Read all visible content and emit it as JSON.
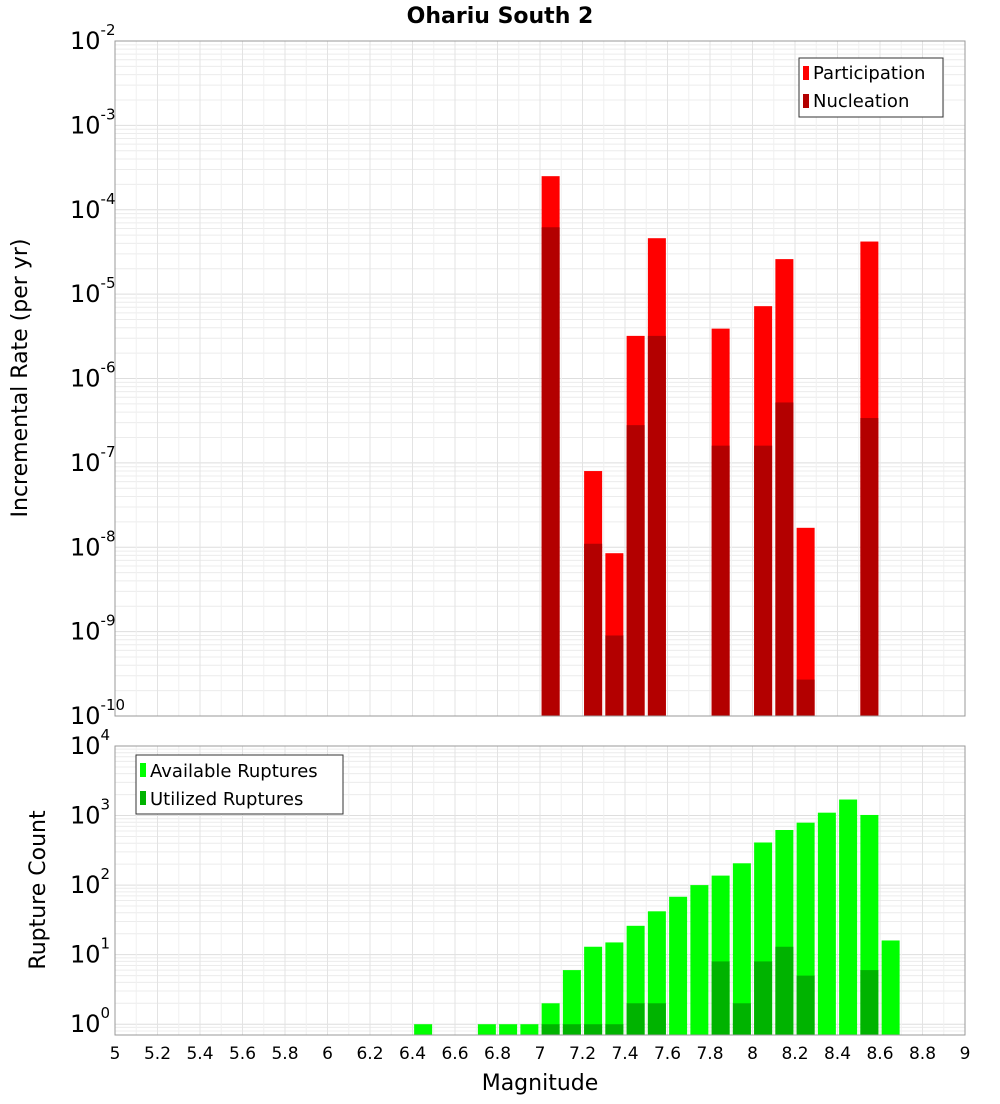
{
  "chart_data": [
    {
      "type": "bar",
      "title": "Ohariu South 2",
      "xlabel": "",
      "ylabel": "Incremental Rate (per yr)",
      "yscale": "log",
      "ylim": [
        1e-10,
        0.01
      ],
      "xlim": [
        5,
        9
      ],
      "grid": true,
      "legend_placement": "top-right",
      "y_tick_labels": [
        "10^-10",
        "10^-9",
        "10^-8",
        "10^-7",
        "10^-6",
        "10^-5",
        "10^-4",
        "10^-3",
        "10^-2"
      ],
      "x": [
        7.05,
        7.25,
        7.35,
        7.45,
        7.55,
        7.85,
        8.05,
        8.15,
        8.25,
        8.55
      ],
      "series": [
        {
          "name": "Participation",
          "color": "#ff0000",
          "values": [
            0.00025,
            8e-08,
            8.5e-09,
            3.2e-06,
            4.6e-05,
            3.9e-06,
            7.2e-06,
            2.6e-05,
            1.7e-08,
            4.2e-05
          ]
        },
        {
          "name": "Nucleation",
          "color": "#b30000",
          "values": [
            6.2e-05,
            1.1e-08,
            9e-10,
            2.8e-07,
            3.2e-06,
            1.6e-07,
            1.6e-07,
            5.2e-07,
            2.7e-10,
            3.4e-07
          ]
        }
      ]
    },
    {
      "type": "bar",
      "title": "",
      "xlabel": "Magnitude",
      "ylabel": "Rupture Count",
      "yscale": "log",
      "ylim": [
        0.7,
        10000.0
      ],
      "xlim": [
        5,
        9
      ],
      "grid": true,
      "legend_placement": "top-left",
      "y_tick_labels": [
        "10^0",
        "10^1",
        "10^2",
        "10^3",
        "10^4"
      ],
      "x_tick_labels": [
        "5",
        "5.2",
        "5.4",
        "5.6",
        "5.8",
        "6",
        "6.2",
        "6.4",
        "6.6",
        "6.8",
        "7",
        "7.2",
        "7.4",
        "7.6",
        "7.8",
        "8",
        "8.2",
        "8.4",
        "8.6",
        "8.8",
        "9"
      ],
      "series": [
        {
          "name": "Available Ruptures",
          "color": "#00ff00",
          "x": [
            6.45,
            6.75,
            6.85,
            6.95,
            7.05,
            7.15,
            7.25,
            7.35,
            7.45,
            7.55,
            7.65,
            7.75,
            7.85,
            7.95,
            8.05,
            8.15,
            8.25,
            8.35,
            8.45,
            8.55,
            8.65
          ],
          "values": [
            1,
            1,
            1,
            1,
            2,
            6,
            13,
            15,
            26,
            42,
            68,
            100,
            137,
            206,
            410,
            620,
            790,
            1100,
            1700,
            1020,
            16
          ]
        },
        {
          "name": "Utilized Ruptures",
          "color": "#00b300",
          "x": [
            7.05,
            7.15,
            7.25,
            7.35,
            7.45,
            7.55,
            7.85,
            7.95,
            8.05,
            8.15,
            8.25,
            8.55
          ],
          "values": [
            1,
            1,
            1,
            1,
            2,
            2,
            8,
            2,
            8,
            13,
            5,
            6
          ]
        }
      ]
    }
  ]
}
